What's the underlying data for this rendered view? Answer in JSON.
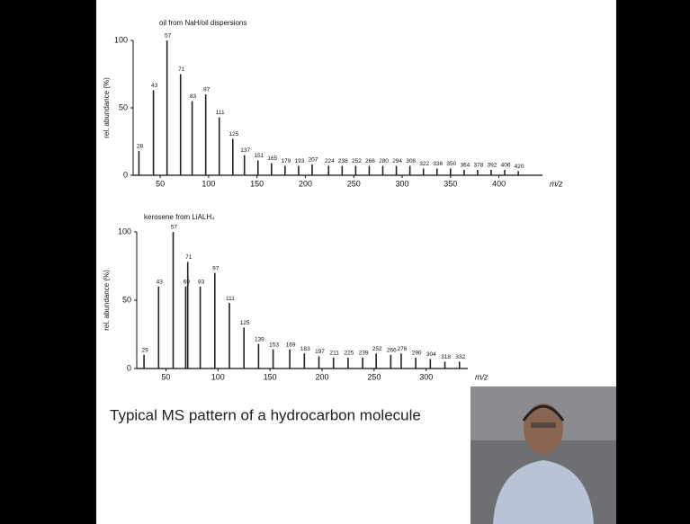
{
  "chart_data": [
    {
      "type": "bar",
      "title": "oil from NaH/oil dispersions",
      "y_label": "rel. abundance (%)",
      "x_label": "m/z",
      "x": [
        28,
        43,
        57,
        71,
        83,
        97,
        111,
        125,
        137,
        151,
        165,
        179,
        193,
        207,
        224,
        238,
        252,
        266,
        280,
        294,
        308,
        322,
        336,
        350,
        364,
        378,
        392,
        406,
        420
      ],
      "values": [
        18,
        63,
        100,
        75,
        55,
        60,
        43,
        27,
        15,
        11,
        9,
        7,
        7,
        8,
        7,
        7,
        7,
        7,
        7,
        7,
        7,
        5,
        5,
        5,
        4,
        4,
        4,
        4,
        3
      ],
      "xlim": [
        22,
        445
      ],
      "ylim": [
        0,
        100
      ],
      "xticks": [
        50,
        100,
        150,
        200,
        250,
        300,
        350,
        400
      ],
      "yticks": [
        0,
        50,
        100
      ],
      "color": "#222222"
    },
    {
      "type": "bar",
      "title": "kerosene from LiALH₄",
      "y_label": "rel. abundance (%)",
      "x_label": "m/z",
      "x": [
        29,
        43,
        57,
        69,
        71,
        83,
        97,
        111,
        125,
        139,
        153,
        169,
        183,
        197,
        211,
        225,
        239,
        252,
        266,
        276,
        290,
        304,
        318,
        332
      ],
      "values": [
        10,
        60,
        100,
        60,
        78,
        60,
        70,
        48,
        30,
        18,
        14,
        14,
        11,
        9,
        8,
        8,
        8,
        11,
        10,
        11,
        8,
        7,
        5,
        5
      ],
      "xlim": [
        22,
        340
      ],
      "ylim": [
        0,
        100
      ],
      "xticks": [
        50,
        100,
        150,
        200,
        250,
        300
      ],
      "yticks": [
        0,
        50,
        100
      ],
      "color": "#222222"
    }
  ],
  "caption": "Typical MS pattern of a hydrocarbon molecule"
}
